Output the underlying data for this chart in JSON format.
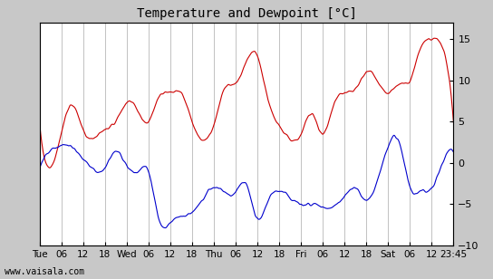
{
  "title": "Temperature and Dewpoint [°C]",
  "ylabel_right_ticks": [
    -10,
    -5,
    0,
    5,
    10,
    15
  ],
  "xlim": [
    0,
    456
  ],
  "ylim": [
    -10,
    17
  ],
  "background_color": "#c8c8c8",
  "plot_bg_color": "#ffffff",
  "grid_color": "#aaaaaa",
  "temp_color": "#cc0000",
  "dew_color": "#0000cc",
  "watermark": "www.vaisala.com",
  "xtick_labels": [
    "Tue",
    "06",
    "12",
    "18",
    "Wed",
    "06",
    "12",
    "18",
    "Thu",
    "06",
    "12",
    "18",
    "Fri",
    "06",
    "12",
    "18",
    "Sat",
    "06",
    "12",
    "23:45"
  ],
  "xtick_positions": [
    0,
    24,
    48,
    72,
    96,
    120,
    144,
    168,
    192,
    216,
    240,
    264,
    288,
    312,
    336,
    360,
    384,
    408,
    432,
    456
  ]
}
